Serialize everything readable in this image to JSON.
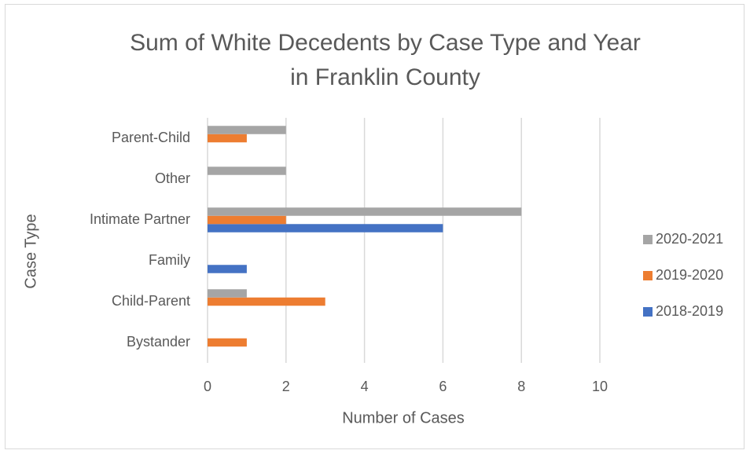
{
  "chart_data": {
    "type": "hbar",
    "title": [
      "Sum of White Decedents by Case Type and Year",
      "in Franklin County"
    ],
    "x_label": "Number of Cases",
    "y_label": "Case Type",
    "categories": [
      "Bystander",
      "Child-Parent",
      "Family",
      "Intimate Partner",
      "Other",
      "Parent-Child"
    ],
    "series": [
      {
        "name": "2018-2019",
        "color": "#4472c4",
        "values": [
          0,
          0,
          1,
          6,
          0,
          0
        ]
      },
      {
        "name": "2019-2020",
        "color": "#ed7d31",
        "values": [
          1,
          3,
          0,
          2,
          0,
          1
        ]
      },
      {
        "name": "2020-2021",
        "color": "#a5a5a5",
        "values": [
          0,
          1,
          0,
          8,
          2,
          2
        ]
      }
    ],
    "xlim": [
      0,
      10
    ],
    "xticks": [
      0,
      2,
      4,
      6,
      8,
      10
    ],
    "grid": true,
    "legend": "right"
  }
}
